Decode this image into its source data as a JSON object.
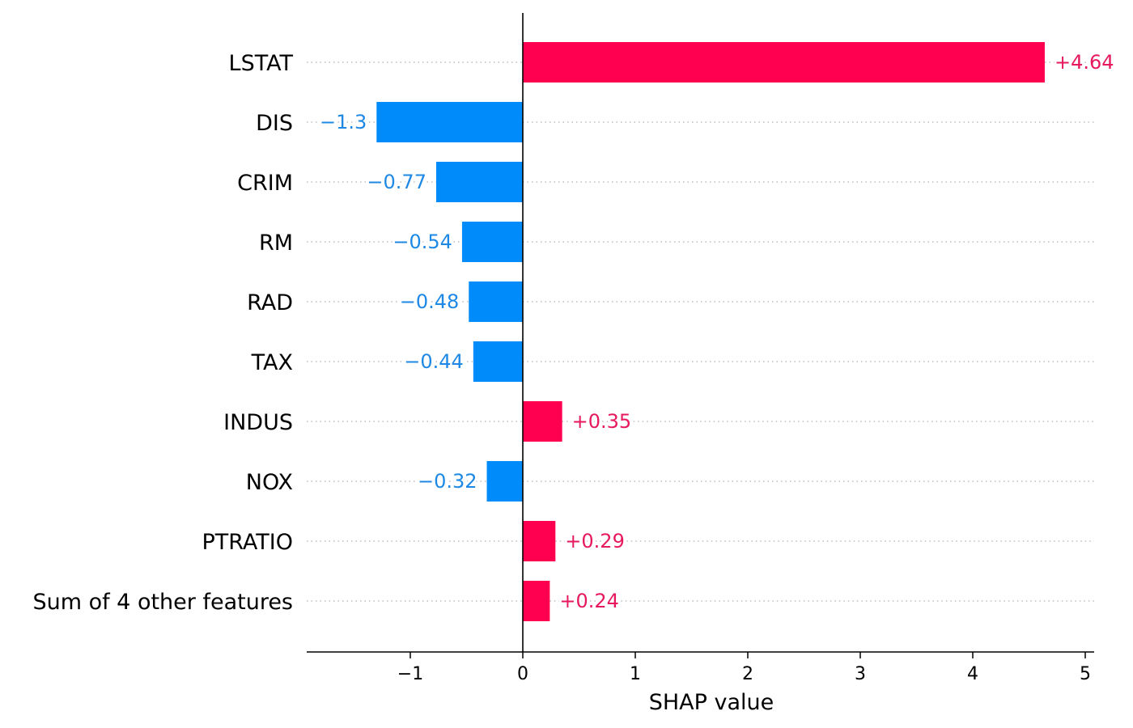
{
  "chart_data": {
    "type": "bar",
    "orientation": "horizontal",
    "xlabel": "SHAP value",
    "xlim": [
      -1.95,
      5.2
    ],
    "xticks": [
      -1,
      0,
      1,
      2,
      3,
      4,
      5
    ],
    "xtick_labels": [
      "−1",
      "0",
      "1",
      "2",
      "3",
      "4",
      "5"
    ],
    "grid": false,
    "colors": {
      "positive": "#ff0051",
      "negative": "#008bfb",
      "positive_text": "#e6185e",
      "negative_text": "#1e88e5"
    },
    "features": [
      {
        "name": "LSTAT",
        "value": 4.64,
        "label": "+4.64"
      },
      {
        "name": "DIS",
        "value": -1.3,
        "label": "−1.3"
      },
      {
        "name": "CRIM",
        "value": -0.77,
        "label": "−0.77"
      },
      {
        "name": "RM",
        "value": -0.54,
        "label": "−0.54"
      },
      {
        "name": "RAD",
        "value": -0.48,
        "label": "−0.48"
      },
      {
        "name": "TAX",
        "value": -0.44,
        "label": "−0.44"
      },
      {
        "name": "INDUS",
        "value": 0.35,
        "label": "+0.35"
      },
      {
        "name": "NOX",
        "value": -0.32,
        "label": "−0.32"
      },
      {
        "name": "PTRATIO",
        "value": 0.29,
        "label": "+0.29"
      },
      {
        "name": "Sum of 4 other features",
        "value": 0.24,
        "label": "+0.24"
      }
    ]
  }
}
